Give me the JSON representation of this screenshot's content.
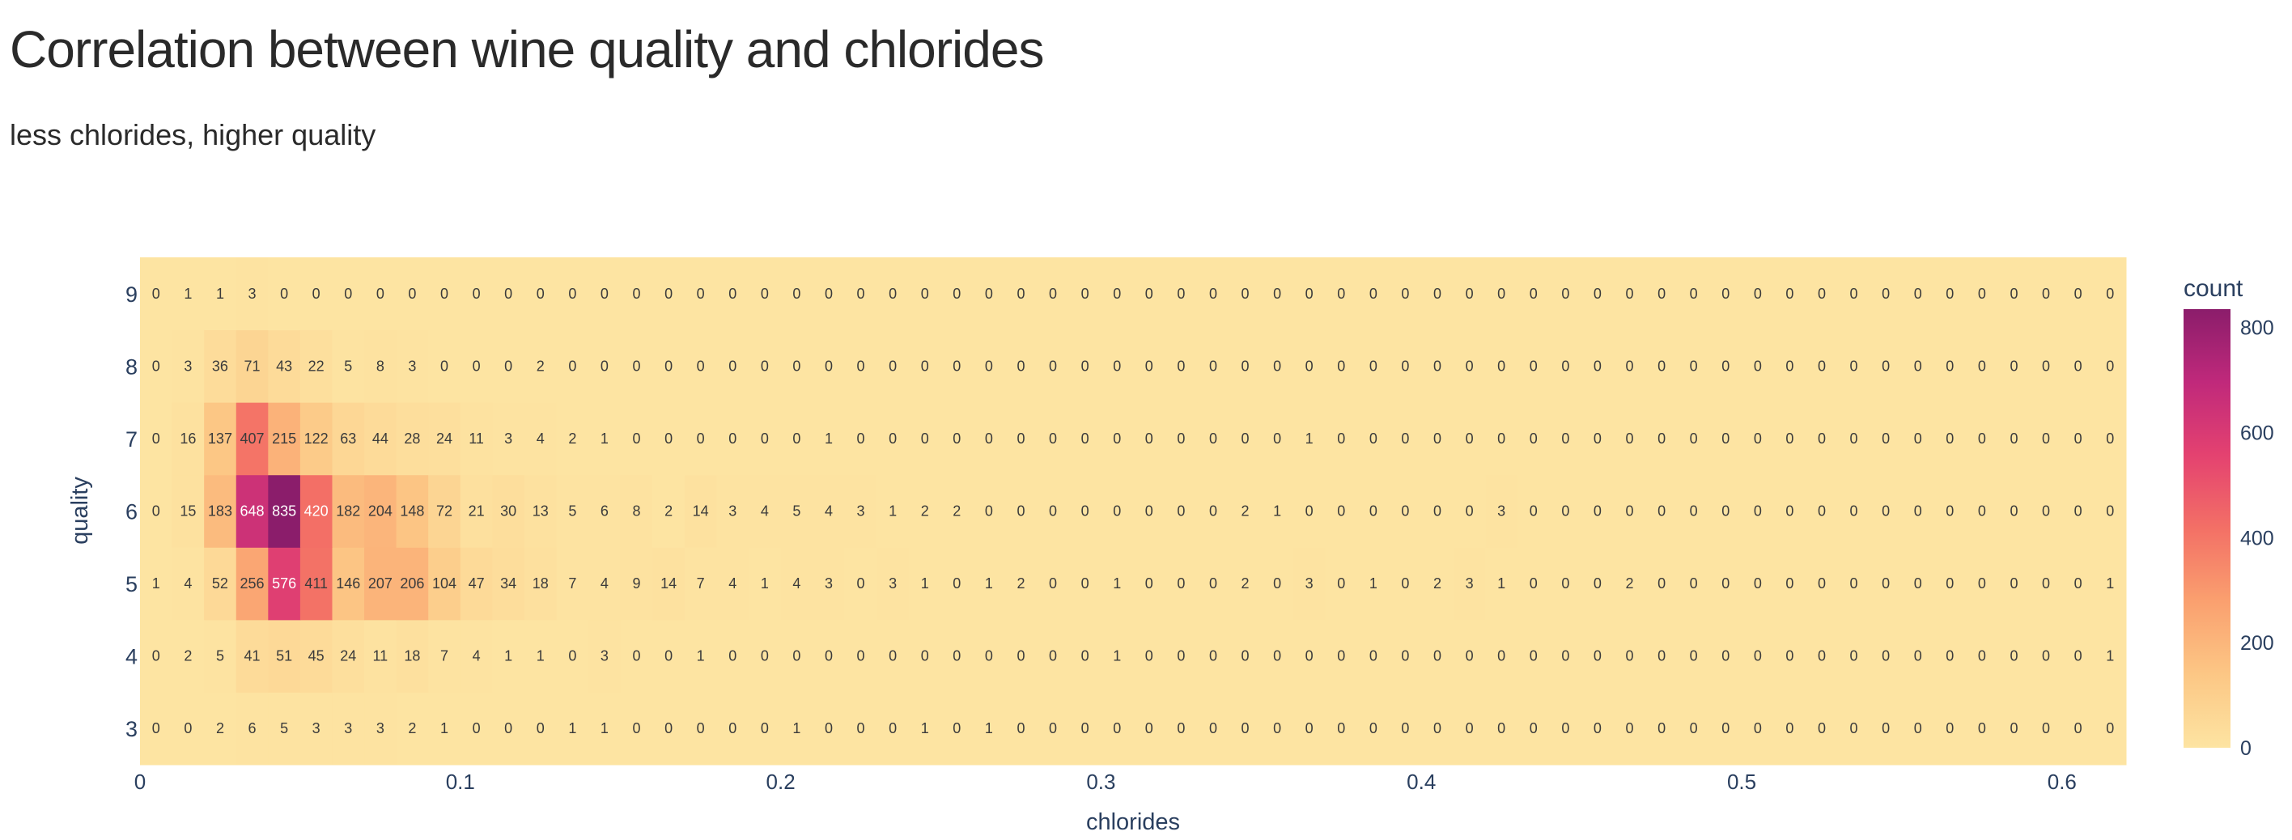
{
  "title": "Correlation between wine quality and chlorides",
  "subtitle": "less chlorides, higher quality",
  "chart_data": {
    "type": "heatmap",
    "title": "Correlation between wine quality and chlorides",
    "subtitle": "less chlorides, higher quality",
    "xlabel": "chlorides",
    "ylabel": "quality",
    "xlim": [
      0,
      0.62
    ],
    "x_ticks": [
      0,
      0.1,
      0.2,
      0.3,
      0.4,
      0.5,
      0.6
    ],
    "x_tick_labels": [
      "0",
      "0.1",
      "0.2",
      "0.3",
      "0.4",
      "0.5",
      "0.6"
    ],
    "bin_width": 0.01,
    "x_bin_starts": [
      0,
      0.01,
      0.02,
      0.03,
      0.04,
      0.05,
      0.06,
      0.07,
      0.08,
      0.09,
      0.1,
      0.11,
      0.12,
      0.13,
      0.14,
      0.15,
      0.16,
      0.17,
      0.18,
      0.19,
      0.2,
      0.21,
      0.22,
      0.23,
      0.24,
      0.25,
      0.26,
      0.27,
      0.28,
      0.29,
      0.3,
      0.31,
      0.32,
      0.33,
      0.34,
      0.35,
      0.36,
      0.37,
      0.38,
      0.39,
      0.4,
      0.41,
      0.42,
      0.43,
      0.44,
      0.45,
      0.46,
      0.47,
      0.48,
      0.49,
      0.5,
      0.51,
      0.52,
      0.53,
      0.54,
      0.55,
      0.56,
      0.57,
      0.58,
      0.59,
      0.6,
      0.61
    ],
    "y_categories": [
      "3",
      "4",
      "5",
      "6",
      "7",
      "8",
      "9"
    ],
    "z": {
      "9": [
        0,
        1,
        1,
        3,
        0,
        0,
        0,
        0,
        0,
        0,
        0,
        0,
        0,
        0,
        0,
        0,
        0,
        0,
        0,
        0,
        0,
        0,
        0,
        0,
        0,
        0,
        0,
        0,
        0,
        0,
        0,
        0,
        0,
        0,
        0,
        0,
        0,
        0,
        0,
        0,
        0,
        0,
        0,
        0,
        0,
        0,
        0,
        0,
        0,
        0,
        0,
        0,
        0,
        0,
        0,
        0,
        0,
        0,
        0,
        0,
        0,
        0
      ],
      "8": [
        0,
        3,
        36,
        71,
        43,
        22,
        5,
        8,
        3,
        0,
        0,
        0,
        2,
        0,
        0,
        0,
        0,
        0,
        0,
        0,
        0,
        0,
        0,
        0,
        0,
        0,
        0,
        0,
        0,
        0,
        0,
        0,
        0,
        0,
        0,
        0,
        0,
        0,
        0,
        0,
        0,
        0,
        0,
        0,
        0,
        0,
        0,
        0,
        0,
        0,
        0,
        0,
        0,
        0,
        0,
        0,
        0,
        0,
        0,
        0,
        0,
        0
      ],
      "7": [
        0,
        16,
        137,
        407,
        215,
        122,
        63,
        44,
        28,
        24,
        11,
        3,
        4,
        2,
        1,
        0,
        0,
        0,
        0,
        0,
        0,
        1,
        0,
        0,
        0,
        0,
        0,
        0,
        0,
        0,
        0,
        0,
        0,
        0,
        0,
        0,
        1,
        0,
        0,
        0,
        0,
        0,
        0,
        0,
        0,
        0,
        0,
        0,
        0,
        0,
        0,
        0,
        0,
        0,
        0,
        0,
        0,
        0,
        0,
        0,
        0,
        0
      ],
      "6": [
        0,
        15,
        183,
        648,
        835,
        420,
        182,
        204,
        148,
        72,
        21,
        30,
        13,
        5,
        6,
        8,
        2,
        14,
        3,
        4,
        5,
        4,
        3,
        1,
        2,
        2,
        0,
        0,
        0,
        0,
        0,
        0,
        0,
        0,
        2,
        1,
        0,
        0,
        0,
        0,
        0,
        0,
        3,
        0,
        0,
        0,
        0,
        0,
        0,
        0,
        0,
        0,
        0,
        0,
        0,
        0,
        0,
        0,
        0,
        0,
        0,
        0
      ],
      "5": [
        1,
        4,
        52,
        256,
        576,
        411,
        146,
        207,
        206,
        104,
        47,
        34,
        18,
        7,
        4,
        9,
        14,
        7,
        4,
        1,
        4,
        3,
        0,
        3,
        1,
        0,
        1,
        2,
        0,
        0,
        1,
        0,
        0,
        0,
        2,
        0,
        3,
        0,
        1,
        0,
        2,
        3,
        1,
        0,
        0,
        0,
        2,
        0,
        0,
        0,
        0,
        0,
        0,
        0,
        0,
        0,
        0,
        0,
        0,
        0,
        0,
        1
      ],
      "4": [
        0,
        2,
        5,
        41,
        51,
        45,
        24,
        11,
        18,
        7,
        4,
        1,
        1,
        0,
        3,
        0,
        0,
        1,
        0,
        0,
        0,
        0,
        0,
        0,
        0,
        0,
        0,
        0,
        0,
        0,
        1,
        0,
        0,
        0,
        0,
        0,
        0,
        0,
        0,
        0,
        0,
        0,
        0,
        0,
        0,
        0,
        0,
        0,
        0,
        0,
        0,
        0,
        0,
        0,
        0,
        0,
        0,
        0,
        0,
        0,
        0,
        1
      ],
      "3": [
        0,
        0,
        2,
        6,
        5,
        3,
        3,
        3,
        2,
        1,
        0,
        0,
        0,
        1,
        1,
        0,
        0,
        0,
        0,
        0,
        1,
        0,
        0,
        0,
        1,
        0,
        1,
        0,
        0,
        0,
        0,
        0,
        0,
        0,
        0,
        0,
        0,
        0,
        0,
        0,
        0,
        0,
        0,
        0,
        0,
        0,
        0,
        0,
        0,
        0,
        0,
        0,
        0,
        0,
        0,
        0,
        0,
        0,
        0,
        0,
        0,
        0
      ]
    },
    "colorbar": {
      "title": "count",
      "min": 0,
      "max": 835,
      "ticks": [
        0,
        200,
        400,
        600,
        800
      ],
      "tick_labels": [
        "0",
        "200",
        "400",
        "600",
        "800"
      ],
      "colorscale": [
        "#fde4a2",
        "#fcc785",
        "#faa06f",
        "#f37066",
        "#e44270",
        "#c0297b",
        "#8b1d6b"
      ]
    },
    "text_color_light": "#ffffff",
    "text_color_dark": "#3b3b3b",
    "legend": "colorbar-right"
  }
}
